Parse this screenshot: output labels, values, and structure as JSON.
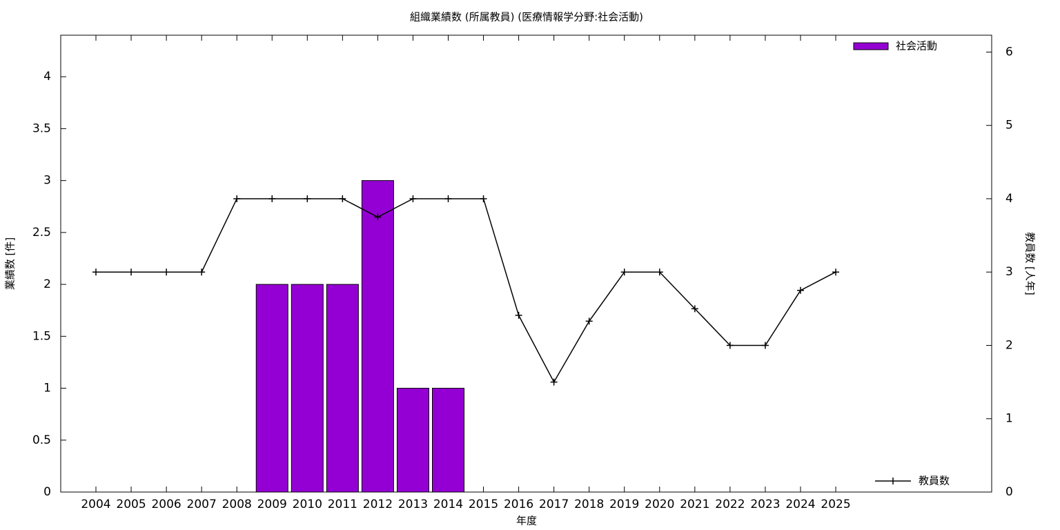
{
  "chart_data": {
    "type": "bar",
    "title": "組織業績数 (所属教員) (医療情報学分野:社会活動)",
    "xlabel": "年度",
    "ylabel": "業績数 [件]",
    "y2label": "教員数 [人年]",
    "categories": [
      "2004",
      "2005",
      "2006",
      "2007",
      "2008",
      "2009",
      "2010",
      "2011",
      "2012",
      "2013",
      "2014",
      "2015",
      "2016",
      "2017",
      "2018",
      "2019",
      "2020",
      "2021",
      "2022",
      "2023",
      "2024",
      "2025"
    ],
    "series": [
      {
        "name": "社会活動",
        "type": "bar",
        "color": "#9400d3",
        "values": [
          0,
          0,
          0,
          0,
          0,
          2,
          2,
          2,
          3,
          1,
          1,
          0,
          0,
          0,
          0,
          0,
          0,
          0,
          0,
          0,
          0,
          0
        ]
      },
      {
        "name": "教員数",
        "type": "line",
        "axis": "y2",
        "color": "#000000",
        "values": [
          3,
          3,
          3,
          3,
          4,
          4,
          4,
          4,
          3.75,
          4,
          4,
          4,
          2.41,
          1.5,
          2.33,
          3,
          3,
          2.5,
          2,
          2,
          2.75,
          3
        ]
      }
    ],
    "ylim": [
      0,
      4.4
    ],
    "yticks": [
      0,
      0.5,
      1,
      1.5,
      2,
      2.5,
      3,
      3.5,
      4
    ],
    "y2lim": [
      0,
      6.23
    ],
    "y2ticks": [
      0,
      1,
      2,
      3,
      4,
      5,
      6
    ]
  }
}
